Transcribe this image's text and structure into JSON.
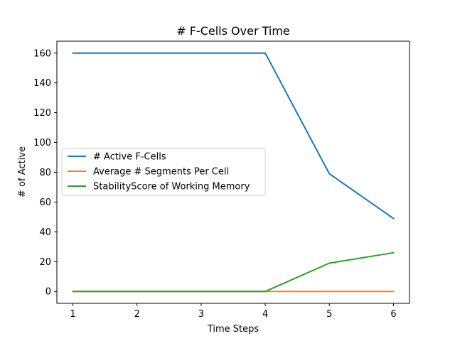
{
  "chart_data": {
    "type": "line",
    "title": "# F-Cells Over Time",
    "xlabel": "Time Steps",
    "ylabel": "# of Active",
    "x": [
      1,
      2,
      3,
      4,
      5,
      6
    ],
    "xlim": [
      0.75,
      6.25
    ],
    "ylim": [
      -8,
      168
    ],
    "xticks": [
      1,
      2,
      3,
      4,
      5,
      6
    ],
    "yticks": [
      0,
      20,
      40,
      60,
      80,
      100,
      120,
      140,
      160
    ],
    "grid": false,
    "legend_position": "center-left",
    "series": [
      {
        "name": "# Active F-Cells",
        "color": "#1f77b4",
        "values": [
          160,
          160,
          160,
          160,
          79,
          49
        ]
      },
      {
        "name": "Average # Segments Per Cell",
        "color": "#ff7f0e",
        "values": [
          0,
          0,
          0,
          0,
          0,
          0
        ]
      },
      {
        "name": "StabilityScore of Working Memory",
        "color": "#2ca02c",
        "values": [
          0,
          0,
          0,
          0,
          19,
          26
        ]
      }
    ]
  }
}
